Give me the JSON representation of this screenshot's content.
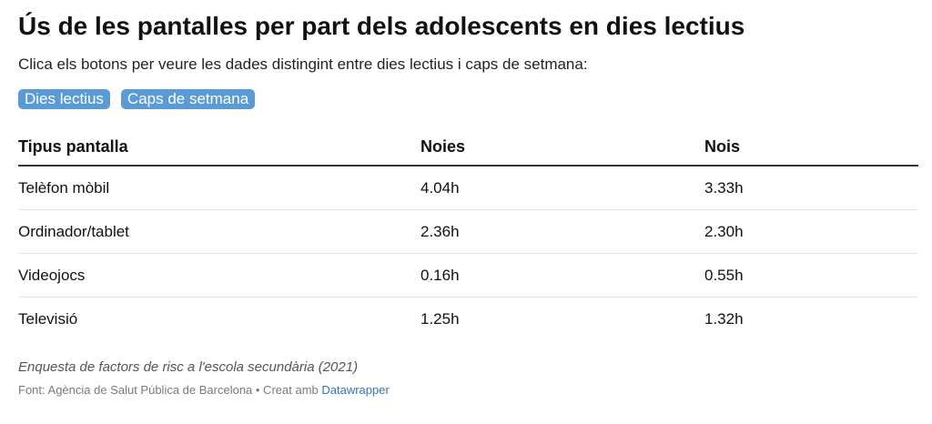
{
  "title": "Ús de les pantalles per part dels adolescents en dies lectius",
  "subtitle": "Clica els botons per veure les dades distingint entre dies lectius i caps de setmana:",
  "buttons": [
    {
      "label": "Dies lectius"
    },
    {
      "label": "Caps de setmana"
    }
  ],
  "table": {
    "headers": [
      "Tipus pantalla",
      "Noies",
      "Nois"
    ],
    "rows": [
      [
        "Telèfon mòbil",
        "4.04h",
        "3.33h"
      ],
      [
        "Ordinador/tablet",
        "2.36h",
        "2.30h"
      ],
      [
        "Videojocs",
        "0.16h",
        "0.55h"
      ],
      [
        "Televisió",
        "1.25h",
        "1.32h"
      ]
    ]
  },
  "notes": "Enquesta de factors de risc a l'escola secundària (2021)",
  "footer": {
    "source": "Font: Agència de Salut Pública de Barcelona • Creat amb ",
    "link_text": "Datawrapper"
  },
  "colors": {
    "button_bg": "#5b9bd5",
    "link": "#2f77b5"
  }
}
